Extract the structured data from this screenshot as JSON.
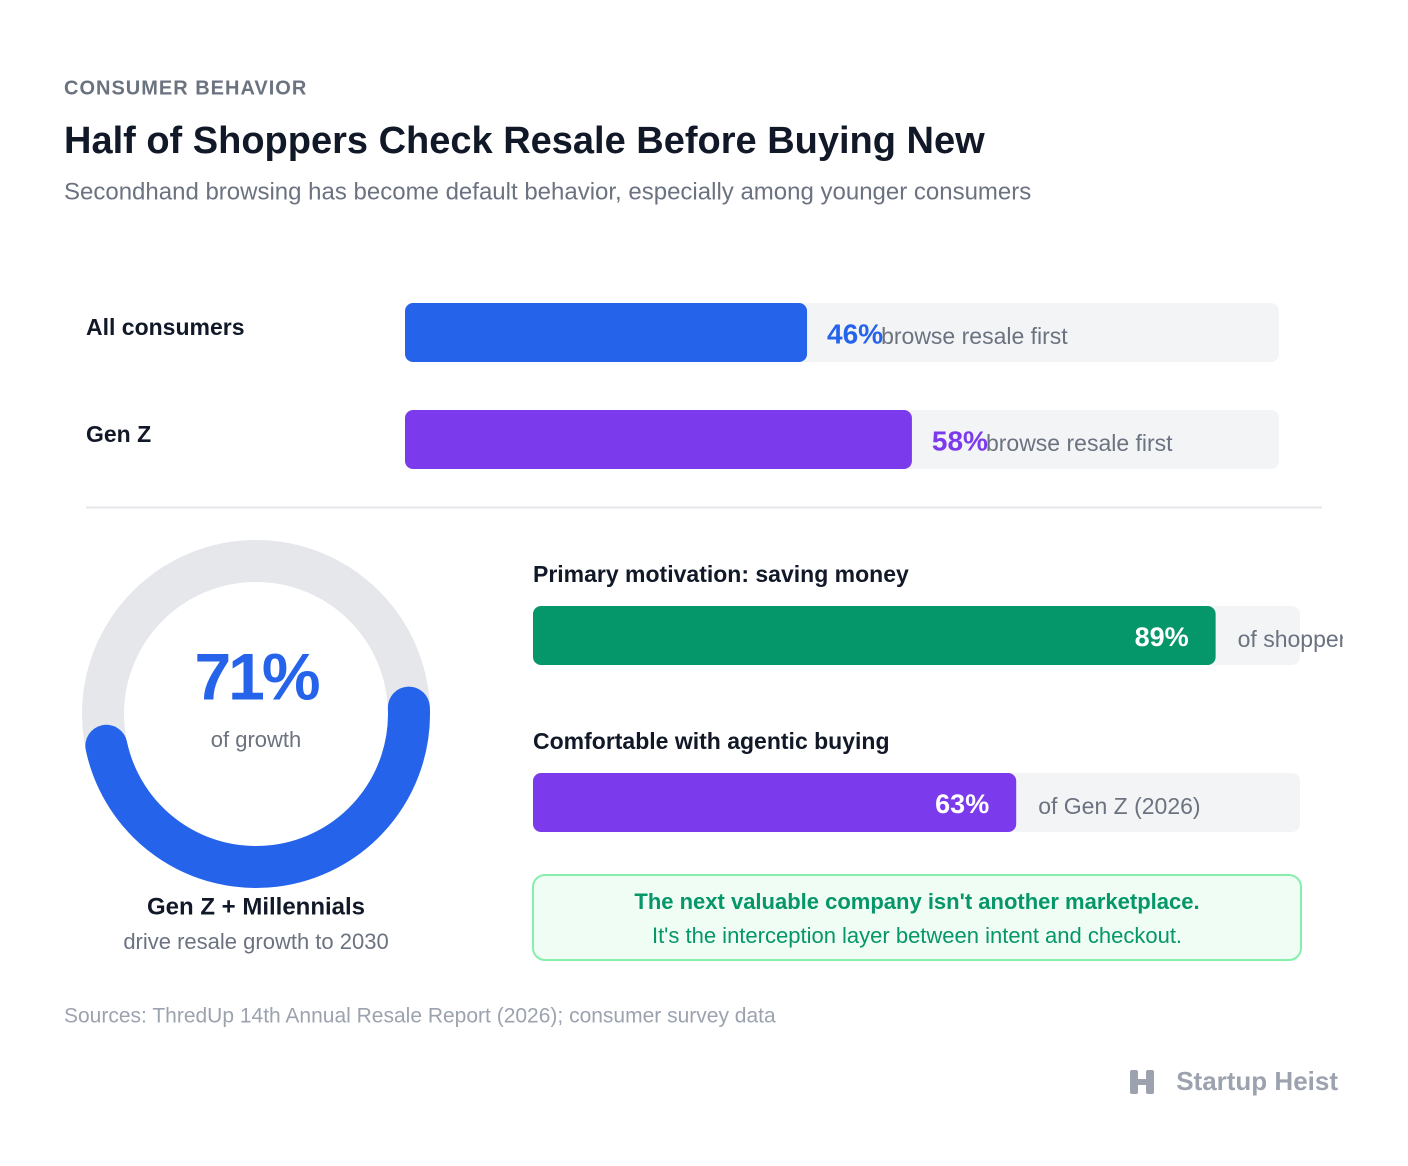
{
  "eyebrow": "CONSUMER BEHAVIOR",
  "title": "Half of Shoppers Check Resale Before Buying New",
  "subtitle": "Secondhand browsing has become default behavior, especially among younger consumers",
  "top_bars": [
    {
      "label": "All consumers",
      "value": 46,
      "value_label": "46%",
      "note": "browse resale first",
      "color": "#2563eb"
    },
    {
      "label": "Gen Z",
      "value": 58,
      "value_label": "58%",
      "note": "browse resale first",
      "color": "#7c3aed"
    }
  ],
  "donut": {
    "value": 71,
    "value_label": "71%",
    "caption": "of growth",
    "title": "Gen Z + Millennials",
    "subtitle": "drive resale growth to 2030",
    "color": "#2563eb",
    "track_color": "#e5e7eb"
  },
  "stat_bars": [
    {
      "label": "Primary motivation: saving money",
      "value": 89,
      "value_label": "89%",
      "note": "of shoppers",
      "color": "#059669"
    },
    {
      "label": "Comfortable with agentic buying",
      "value": 63,
      "value_label": "63%",
      "note": "of Gen Z (2026)",
      "color": "#7c3aed"
    }
  ],
  "callout": [
    "The next valuable company isn't another marketplace.",
    "It's the interception layer between intent and checkout."
  ],
  "source": "Sources: ThredUp 14th Annual Resale Report (2026); consumer survey data",
  "brand": "Startup Heist"
}
